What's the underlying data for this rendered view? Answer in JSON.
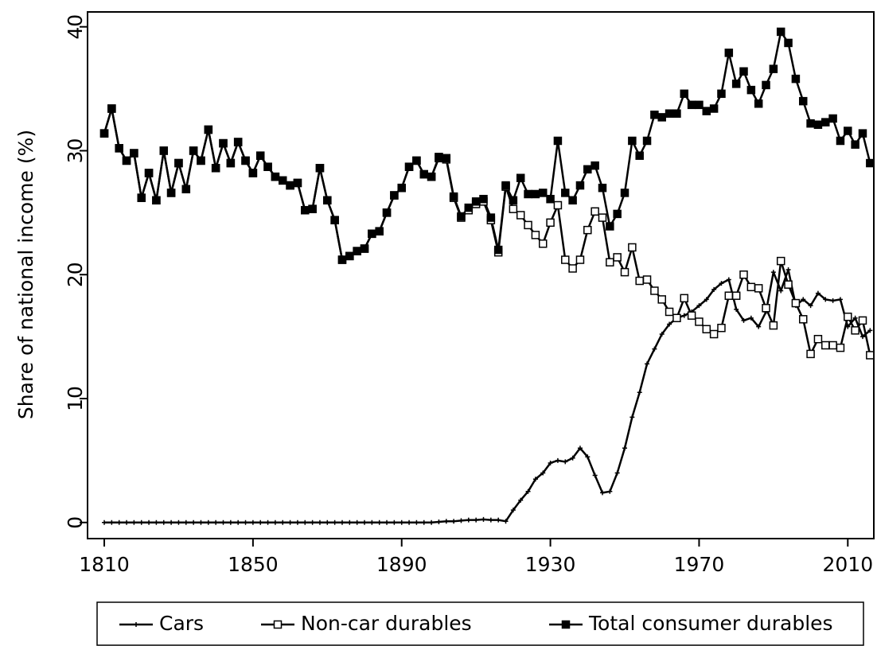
{
  "chart_data": {
    "type": "line",
    "y_label": "Share of national income (%)",
    "x": [
      1810,
      1812,
      1814,
      1816,
      1818,
      1820,
      1822,
      1824,
      1826,
      1828,
      1830,
      1832,
      1834,
      1836,
      1838,
      1840,
      1842,
      1844,
      1846,
      1848,
      1850,
      1852,
      1854,
      1856,
      1858,
      1860,
      1862,
      1864,
      1866,
      1868,
      1870,
      1872,
      1874,
      1876,
      1878,
      1880,
      1882,
      1884,
      1886,
      1888,
      1890,
      1892,
      1894,
      1896,
      1898,
      1900,
      1902,
      1904,
      1906,
      1908,
      1910,
      1912,
      1914,
      1916,
      1918,
      1920,
      1922,
      1924,
      1926,
      1928,
      1930,
      1932,
      1934,
      1936,
      1938,
      1940,
      1942,
      1944,
      1946,
      1948,
      1950,
      1952,
      1954,
      1956,
      1958,
      1960,
      1962,
      1964,
      1966,
      1968,
      1970,
      1972,
      1974,
      1976,
      1978,
      1980,
      1982,
      1984,
      1986,
      1988,
      1990,
      1992,
      1994,
      1996,
      1998,
      2000,
      2002,
      2004,
      2006,
      2008,
      2010,
      2012,
      2014,
      2016
    ],
    "series": [
      {
        "name": "Cars",
        "color": "#000000",
        "marker": "cross",
        "values": [
          0,
          0,
          0,
          0,
          0,
          0,
          0,
          0,
          0,
          0,
          0,
          0,
          0,
          0,
          0,
          0,
          0,
          0,
          0,
          0,
          0,
          0,
          0,
          0,
          0,
          0,
          0,
          0,
          0,
          0,
          0,
          0,
          0,
          0,
          0,
          0,
          0,
          0,
          0,
          0,
          0,
          0,
          0,
          0,
          0,
          0.05,
          0.1,
          0.1,
          0.15,
          0.2,
          0.2,
          0.25,
          0.2,
          0.2,
          0.1,
          1.0,
          1.8,
          2.5,
          3.5,
          4.0,
          4.8,
          5.0,
          4.9,
          5.2,
          6.0,
          5.3,
          3.8,
          2.4,
          2.5,
          4.0,
          6.0,
          8.5,
          10.5,
          12.8,
          14.0,
          15.2,
          16.0,
          16.5,
          16.7,
          17.0,
          17.5,
          18.0,
          18.8,
          19.3,
          19.6,
          17.2,
          16.3,
          16.5,
          15.8,
          17.0,
          20.2,
          18.7,
          20.4,
          17.5,
          18.0,
          17.5,
          18.5,
          18.0,
          17.9,
          18.0,
          15.8,
          16.5,
          15.0,
          15.5
        ]
      },
      {
        "name": "Non-car durables",
        "color": "#000000",
        "marker": "square-open",
        "values": [
          31.4,
          33.4,
          30.2,
          29.2,
          29.8,
          26.2,
          28.2,
          26.0,
          30.0,
          26.6,
          29.0,
          26.9,
          30.0,
          29.2,
          31.7,
          28.6,
          30.6,
          29.0,
          30.7,
          29.2,
          28.2,
          29.6,
          28.7,
          27.9,
          27.6,
          27.2,
          27.4,
          25.2,
          25.3,
          28.6,
          26.0,
          24.4,
          21.2,
          21.5,
          21.9,
          22.1,
          23.3,
          23.5,
          25.0,
          26.4,
          27.0,
          28.7,
          29.2,
          28.1,
          27.9,
          29.4,
          29.3,
          26.2,
          24.6,
          25.2,
          25.7,
          25.9,
          24.4,
          21.8,
          27.1,
          25.3,
          24.8,
          24.0,
          23.2,
          22.5,
          24.2,
          25.6,
          21.2,
          20.5,
          21.2,
          23.6,
          25.1,
          24.6,
          21.0,
          21.4,
          20.2,
          22.2,
          19.5,
          19.6,
          18.7,
          18.0,
          17.0,
          16.5,
          18.1,
          16.7,
          16.2,
          15.6,
          15.2,
          15.7,
          18.3,
          18.3,
          20.0,
          19.0,
          18.9,
          17.3,
          15.9,
          21.1,
          19.2,
          17.7,
          16.4,
          13.6,
          14.8,
          14.3,
          14.3,
          14.1,
          16.6,
          15.5,
          16.3,
          13.5
        ]
      },
      {
        "name": "Total consumer durables",
        "color": "#000000",
        "marker": "square",
        "values": [
          31.4,
          33.4,
          30.2,
          29.2,
          29.8,
          26.2,
          28.2,
          26.0,
          30.0,
          26.6,
          29.0,
          26.9,
          30.0,
          29.2,
          31.7,
          28.6,
          30.6,
          29.0,
          30.7,
          29.2,
          28.2,
          29.6,
          28.7,
          27.9,
          27.6,
          27.2,
          27.4,
          25.2,
          25.3,
          28.6,
          26.0,
          24.4,
          21.2,
          21.5,
          21.9,
          22.1,
          23.3,
          23.5,
          25.0,
          26.4,
          27.0,
          28.7,
          29.2,
          28.1,
          27.9,
          29.5,
          29.4,
          26.3,
          24.7,
          25.4,
          25.9,
          26.1,
          24.6,
          22.0,
          27.2,
          26.0,
          27.8,
          26.5,
          26.5,
          26.6,
          26.1,
          30.8,
          26.6,
          26.0,
          27.2,
          28.5,
          28.8,
          27.0,
          23.9,
          24.9,
          26.6,
          30.8,
          29.6,
          30.8,
          32.9,
          32.7,
          33.0,
          33.0,
          34.6,
          33.7,
          33.7,
          33.2,
          33.4,
          34.6,
          37.9,
          35.4,
          36.4,
          34.9,
          33.8,
          35.3,
          36.6,
          39.6,
          38.7,
          35.8,
          34.0,
          32.2,
          32.1,
          32.3,
          32.6,
          30.8,
          31.6,
          30.5,
          31.4,
          29.0
        ]
      }
    ],
    "xlim": [
      1805.5,
      2017
    ],
    "ylim": [
      -1.3,
      41.2
    ],
    "xticks": [
      1810,
      1850,
      1890,
      1930,
      1970,
      2010
    ],
    "yticks": [
      0,
      10,
      20,
      30,
      40
    ],
    "grid": false,
    "legend": "bottom"
  }
}
